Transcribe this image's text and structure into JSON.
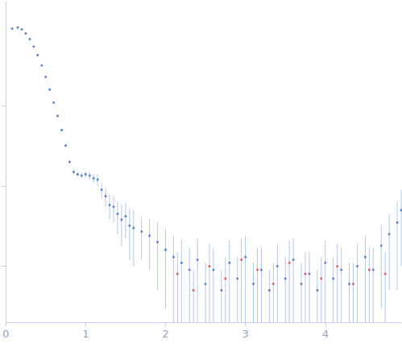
{
  "chart_data": {
    "type": "scatter",
    "log": "y",
    "grid": false,
    "tick_labels": "x",
    "marker": "circle",
    "xlim": [
      0,
      4.95
    ],
    "xticks": [
      0,
      1,
      2,
      3,
      4
    ],
    "ylim": [
      0.0002,
      2
    ],
    "yticks": [
      0.001,
      0.01,
      0.1
    ],
    "series": [
      {
        "color": "#3d6cc2",
        "x": [
          0.08,
          0.15,
          0.2,
          0.25,
          0.3,
          0.35,
          0.4,
          0.45,
          0.5,
          0.55,
          0.6,
          0.65,
          0.7,
          0.75,
          0.8,
          0.85,
          0.9,
          0.95,
          1.0,
          1.05,
          1.1,
          1.15,
          1.2,
          1.25,
          1.3,
          1.35,
          1.4,
          1.45,
          1.5,
          1.55,
          1.6,
          1.7,
          1.8,
          1.9,
          2.0,
          2.1,
          2.2,
          2.3,
          2.4,
          2.5,
          2.6,
          2.7,
          2.8,
          2.9,
          3.0,
          3.1,
          3.2,
          3.3,
          3.4,
          3.5,
          3.6,
          3.7,
          3.8,
          3.9,
          4.0,
          4.1,
          4.2,
          4.3,
          4.4,
          4.5,
          4.6,
          4.7,
          4.8,
          4.9,
          4.95
        ],
        "values": [
          0.92,
          0.95,
          0.9,
          0.8,
          0.68,
          0.55,
          0.43,
          0.32,
          0.23,
          0.16,
          0.11,
          0.075,
          0.05,
          0.032,
          0.02,
          0.015,
          0.014,
          0.0135,
          0.014,
          0.0135,
          0.0125,
          0.012,
          0.009,
          0.0075,
          0.0058,
          0.0055,
          0.0045,
          0.0038,
          0.0042,
          0.0032,
          0.003,
          0.0027,
          0.0024,
          0.002,
          0.0016,
          0.0013,
          0.0011,
          0.0009,
          0.0012,
          0.0006,
          0.0009,
          0.0005,
          0.0011,
          0.0007,
          0.0013,
          0.0006,
          0.0009,
          0.0005,
          0.001,
          0.0007,
          0.0012,
          0.0006,
          0.0008,
          0.0005,
          0.0011,
          0.0007,
          0.0009,
          0.0006,
          0.001,
          0.0013,
          0.0009,
          0.0018,
          0.0025,
          0.0035,
          0.005
        ],
        "error": [
          0.01,
          0.01,
          0.01,
          0.01,
          0.01,
          0.008,
          0.007,
          0.006,
          0.005,
          0.004,
          0.003,
          0.002,
          0.0015,
          0.0012,
          0.001,
          0.001,
          0.001,
          0.001,
          0.0012,
          0.0015,
          0.0015,
          0.002,
          0.002,
          0.002,
          0.002,
          0.002,
          0.002,
          0.002,
          0.002,
          0.002,
          0.002,
          0.0015,
          0.0015,
          0.0015,
          0.0013,
          0.0011,
          0.001,
          0.0008,
          0.001,
          0.0005,
          0.0008,
          0.0004,
          0.001,
          0.0006,
          0.0011,
          0.0005,
          0.0008,
          0.0004,
          0.0009,
          0.0006,
          0.001,
          0.0005,
          0.0007,
          0.0004,
          0.001,
          0.0006,
          0.0008,
          0.0005,
          0.0009,
          0.0011,
          0.0008,
          0.0015,
          0.002,
          0.003,
          0.004
        ]
      },
      {
        "color": "#e8382f",
        "x": [
          2.15,
          2.35,
          2.55,
          2.75,
          2.95,
          3.15,
          3.35,
          3.55,
          3.75,
          3.95,
          4.15,
          4.35,
          4.55,
          4.75
        ],
        "values": [
          0.0008,
          0.0005,
          0.001,
          0.0007,
          0.0012,
          0.0009,
          0.0006,
          0.0011,
          0.0008,
          0.0007,
          0.001,
          0.0006,
          0.0009,
          0.0008
        ],
        "error": [
          0.0007,
          0.0004,
          0.0009,
          0.0006,
          0.001,
          0.0008,
          0.0005,
          0.001,
          0.0007,
          0.0006,
          0.0009,
          0.0005,
          0.0008,
          0.0007
        ]
      }
    ]
  }
}
